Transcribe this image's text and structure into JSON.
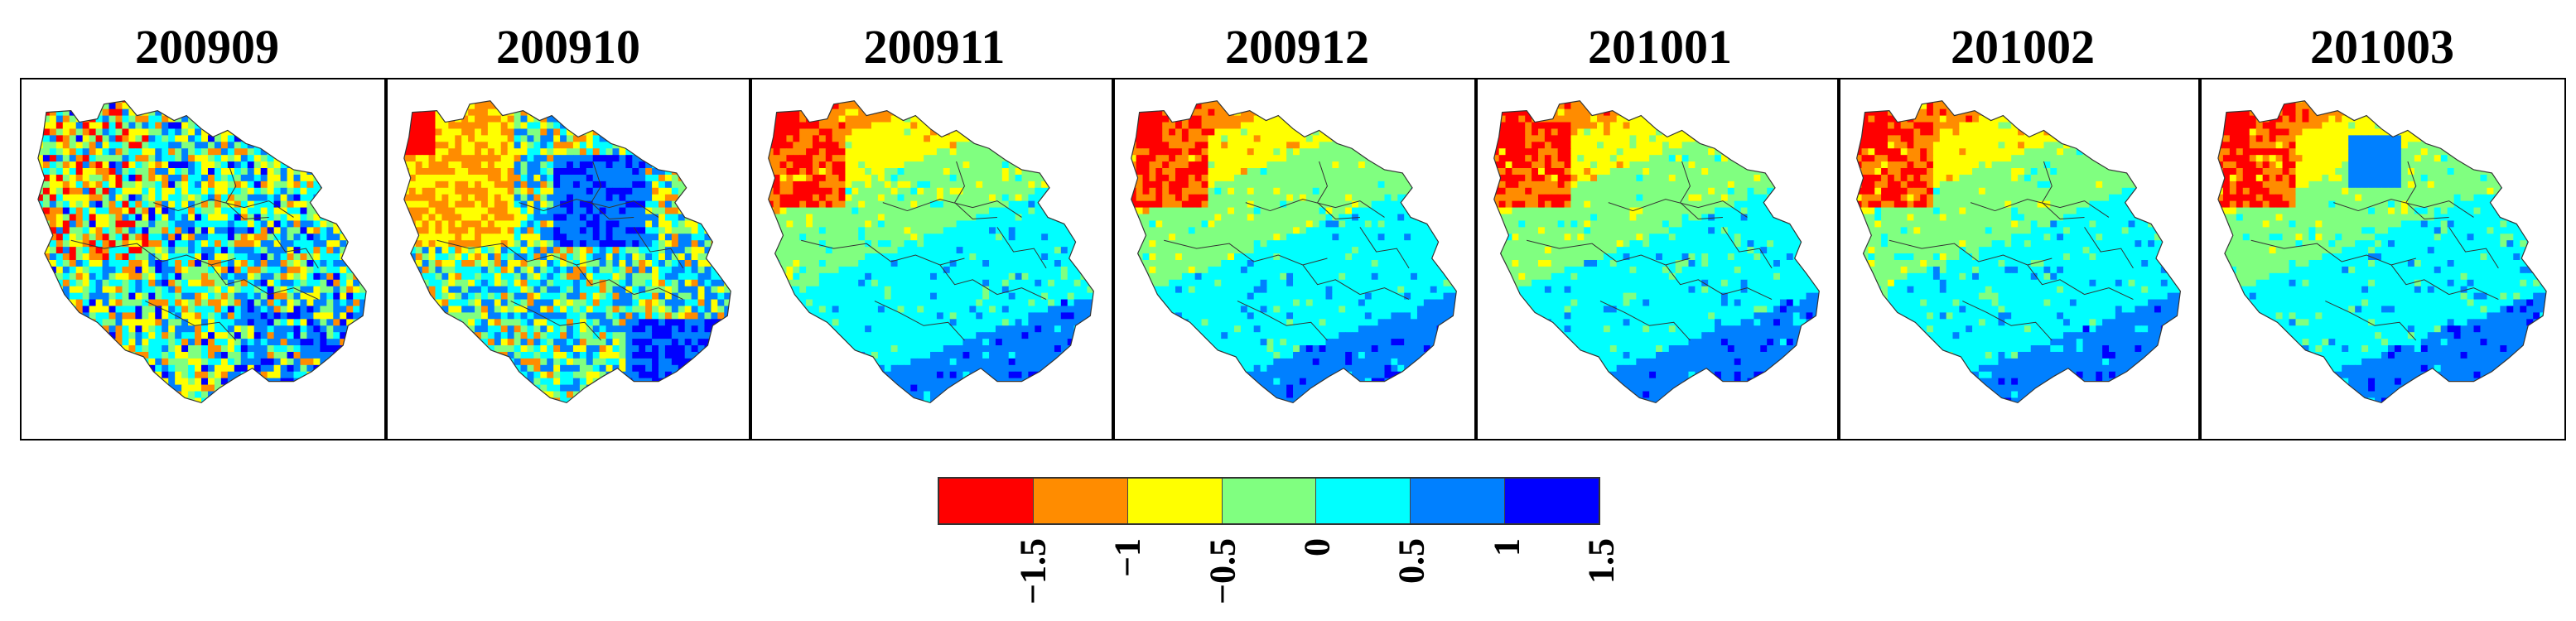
{
  "panels": [
    {
      "title": "200909",
      "pattern": "mixed"
    },
    {
      "title": "200910",
      "pattern": "mixed-blue"
    },
    {
      "title": "200911",
      "pattern": "smooth"
    },
    {
      "title": "200912",
      "pattern": "smooth"
    },
    {
      "title": "201001",
      "pattern": "smooth"
    },
    {
      "title": "201002",
      "pattern": "smooth"
    },
    {
      "title": "201003",
      "pattern": "smooth-blue"
    }
  ],
  "legend": {
    "colors": [
      "#ff0000",
      "#ff8c00",
      "#ffff00",
      "#80ff80",
      "#00ffff",
      "#0080ff",
      "#0000ff"
    ],
    "ticks": [
      "−1.5",
      "−1",
      "−0.5",
      "0",
      "0.5",
      "1",
      "1.5"
    ]
  }
}
